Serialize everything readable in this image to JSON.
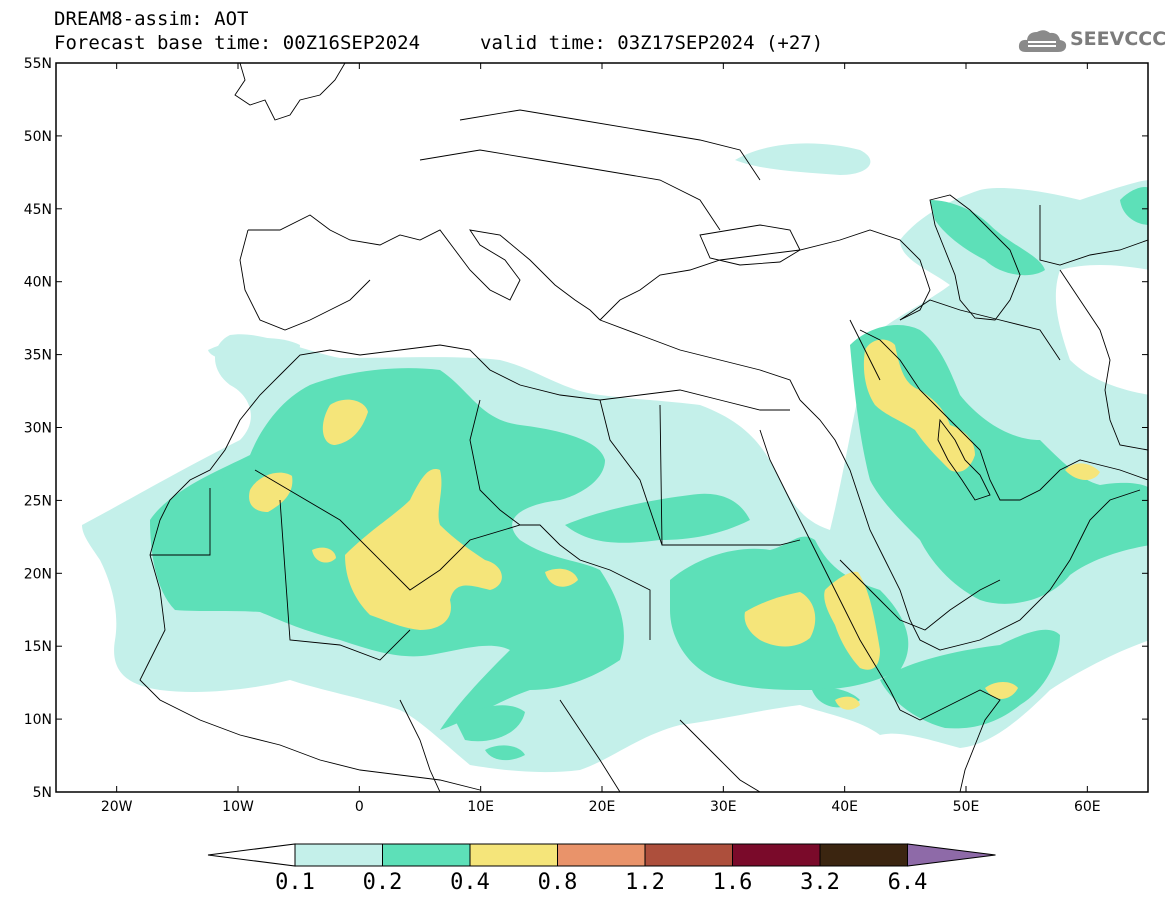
{
  "header": {
    "title": "DREAM8-assim: AOT",
    "base_time": "Forecast base time: 00Z16SEP2024",
    "valid_time": "valid time: 03Z17SEP2024 (+27)"
  },
  "logo": {
    "text": "SEEVCCC",
    "icon": "cloud-icon"
  },
  "map": {
    "lon_range": [
      -25,
      65
    ],
    "lat_range": [
      5,
      55
    ],
    "lat_labels": [
      "55N",
      "50N",
      "45N",
      "40N",
      "35N",
      "30N",
      "25N",
      "20N",
      "15N",
      "10N",
      "5N"
    ],
    "lon_labels": [
      "20W",
      "10W",
      "0",
      "10E",
      "20E",
      "30E",
      "40E",
      "50E",
      "60E"
    ]
  },
  "colorbar": {
    "labels": [
      "0.1",
      "0.2",
      "0.4",
      "0.8",
      "1.2",
      "1.6",
      "3.2",
      "6.4"
    ],
    "colors": [
      "#c4f0ea",
      "#5de0b8",
      "#f5e57a",
      "#e9936a",
      "#ad4f3c",
      "#7a0a2a",
      "#3b2510",
      "#8e6aa8"
    ],
    "under_color": "#ffffff"
  }
}
